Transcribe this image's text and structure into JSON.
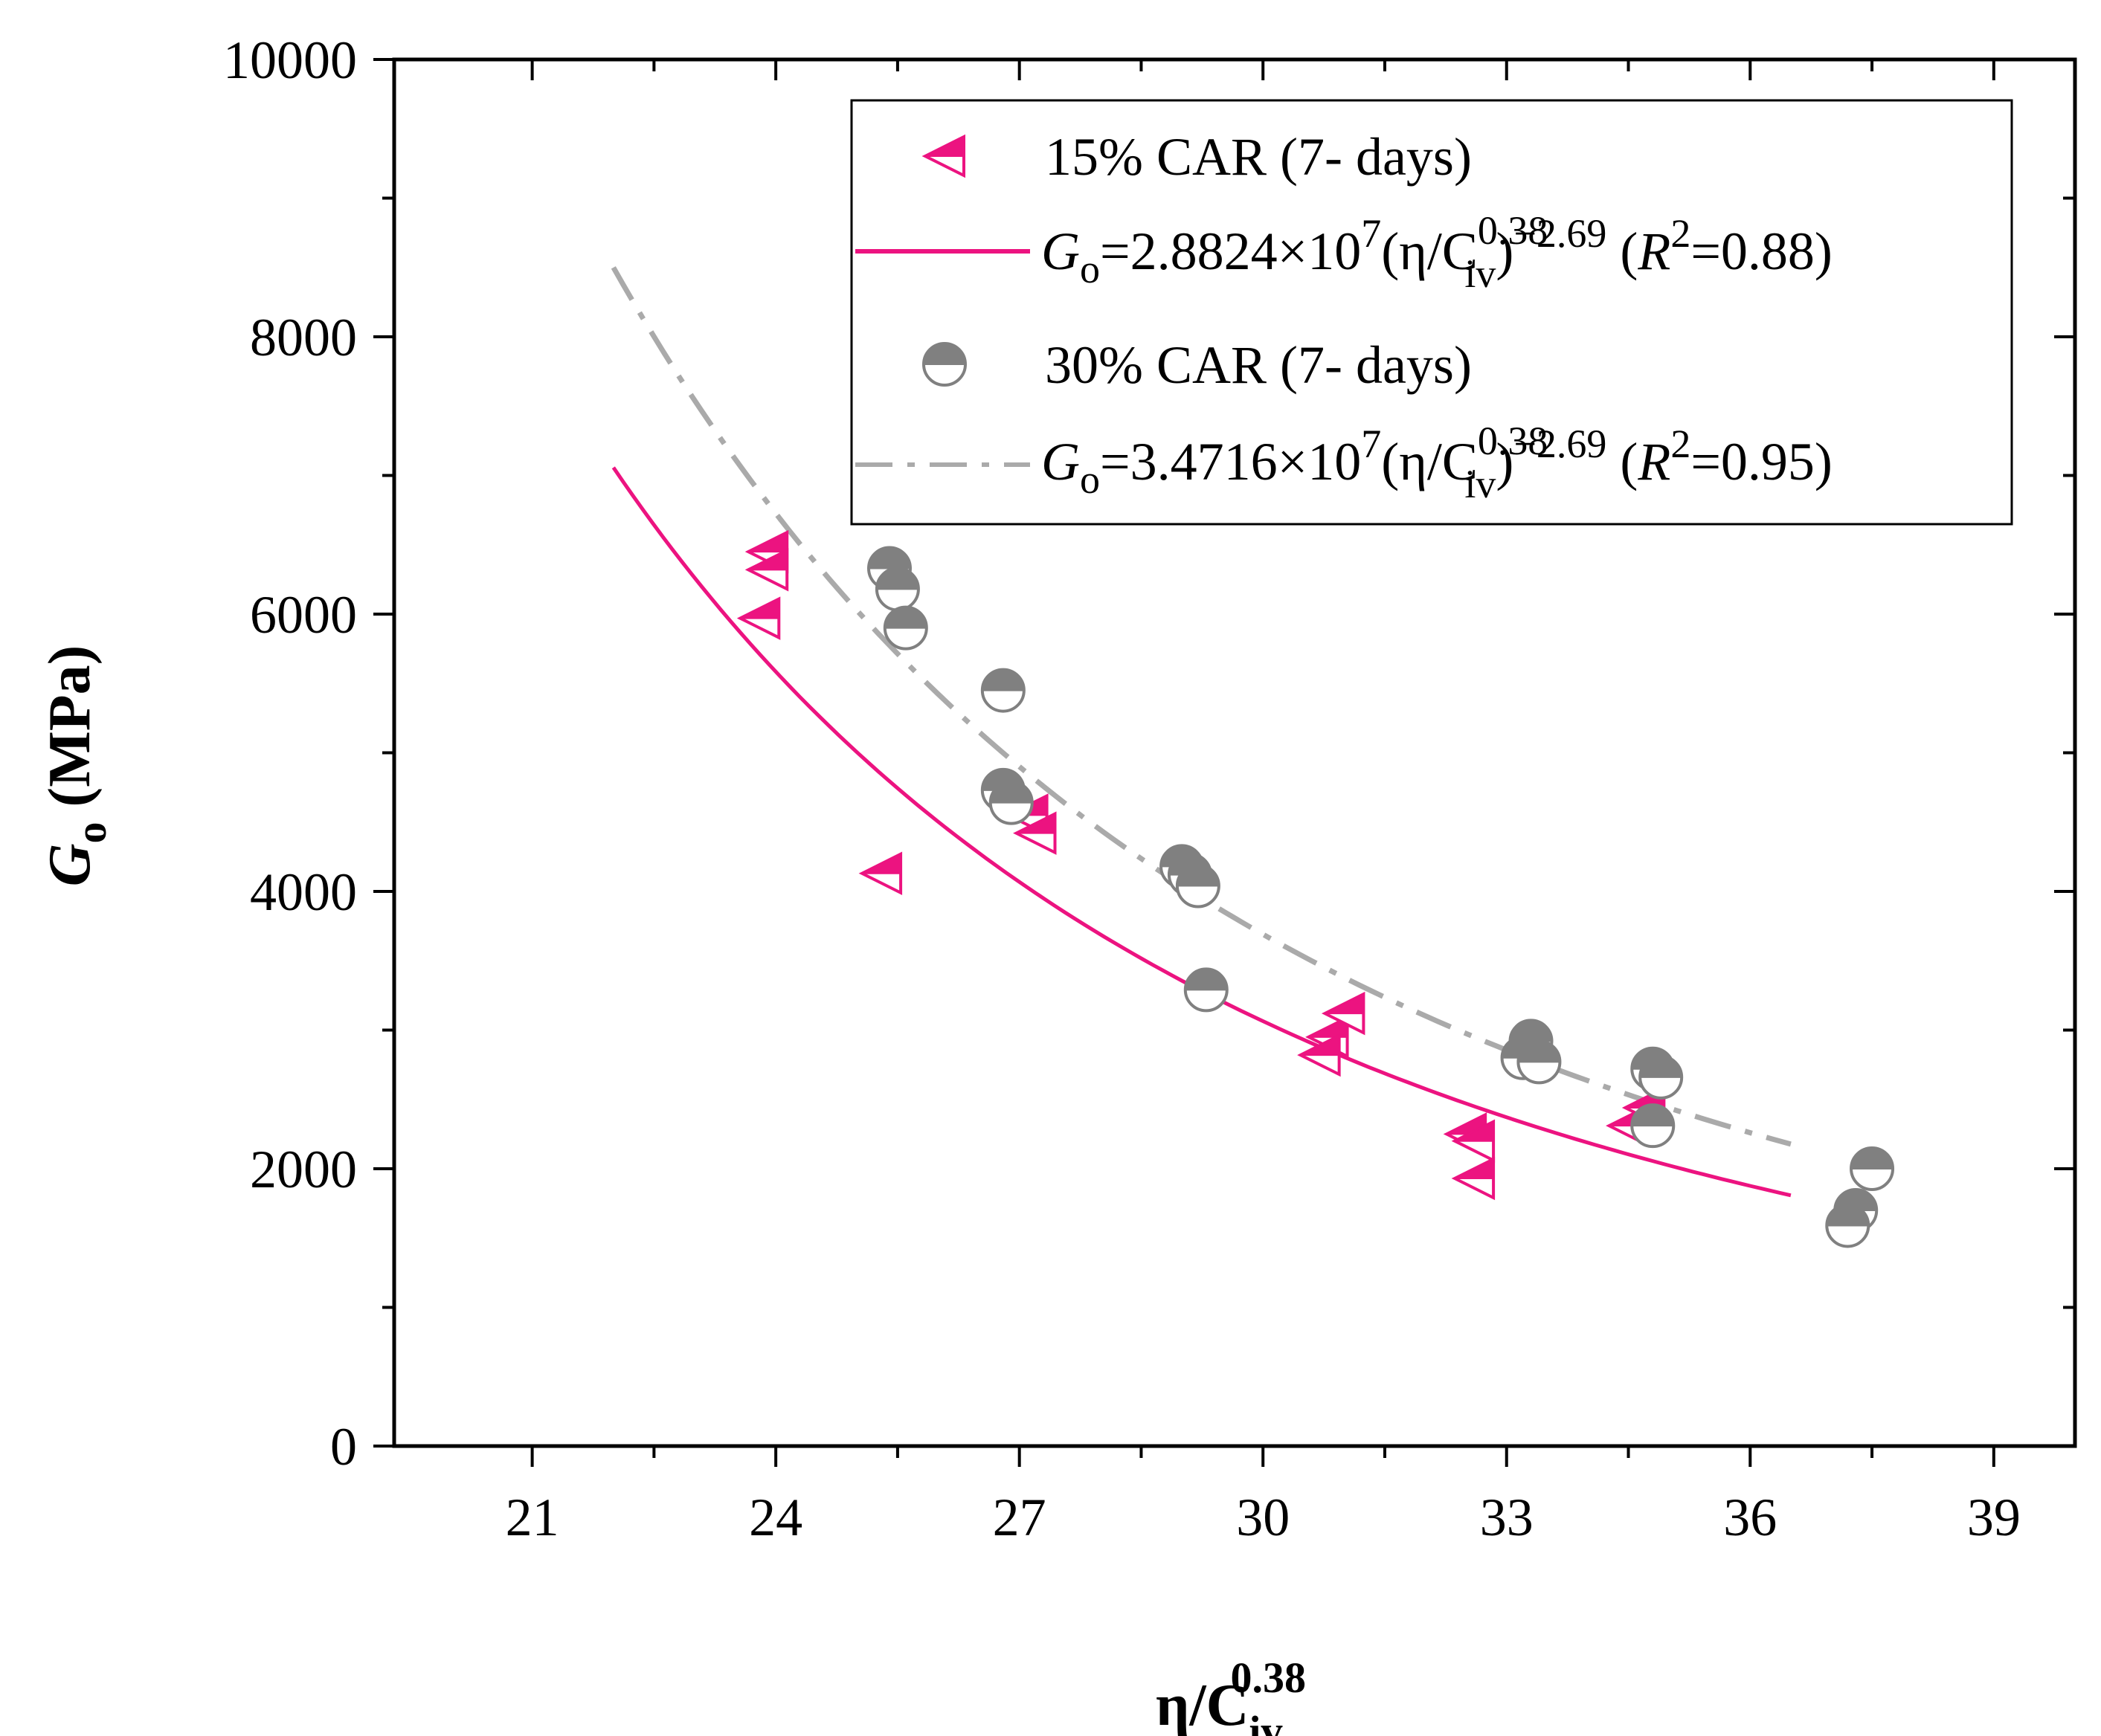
{
  "chart_data": {
    "type": "scatter",
    "title": "",
    "xlabel": {
      "base": "η/C",
      "sub": "iv",
      "sup": "0.38"
    },
    "ylabel": {
      "base": "G",
      "sub": "o",
      "unit": " (MPa)"
    },
    "xlim": [
      19.3,
      40.0
    ],
    "ylim": [
      0,
      10000
    ],
    "xticks": [
      21,
      24,
      27,
      30,
      33,
      36,
      39
    ],
    "xtick_labels": [
      "21",
      "24",
      "27",
      "30",
      "33",
      "36",
      "39"
    ],
    "yticks": [
      0,
      2000,
      4000,
      6000,
      8000,
      10000
    ],
    "ytick_labels": [
      "0",
      "2000",
      "4000",
      "6000",
      "8000",
      "10000"
    ],
    "colors": {
      "pink": "#ec1380",
      "gray": "#808080",
      "gray_light": "#aaaaaa"
    },
    "series": [
      {
        "name": "15% CAR (7- days)",
        "kind": "points",
        "marker": "half-triangle-left",
        "color": "#ec1380",
        "x": [
          23.9,
          23.9,
          23.8,
          25.3,
          27.1,
          27.2,
          30.8,
          31.0,
          30.7,
          32.5,
          32.6,
          32.6,
          34.5,
          34.7
        ],
        "y": [
          6450,
          6320,
          5970,
          4130,
          4550,
          4420,
          2950,
          3120,
          2820,
          2250,
          2200,
          1930,
          2310,
          2440
        ]
      },
      {
        "name": "Go=2.8824×10^7(η/Civ^0.38)^−2.69 (R^2=0.88)",
        "kind": "fit",
        "coef": 28824000,
        "exp": -2.69,
        "xrange": [
          22.0,
          36.5
        ],
        "color": "#ec1380",
        "dash": "solid",
        "legend": {
          "pre": "G",
          "sub1": "o",
          "mid": "=2.8824×10",
          "exp1": "7",
          "open": "(η/C",
          "sup2": "0.38",
          "sub2": "iv",
          "close": ")",
          "exp3": "−2.69",
          "r_open": " (",
          "r": "R",
          "exp4": "2",
          "r_close": "=0.88)"
        }
      },
      {
        "name": "30% CAR (7- days)",
        "kind": "points",
        "marker": "half-circle",
        "color": "#808080",
        "x": [
          25.4,
          25.5,
          25.6,
          26.8,
          26.8,
          26.9,
          29.0,
          29.1,
          29.2,
          29.3,
          33.3,
          33.2,
          33.4,
          34.8,
          34.9,
          34.8,
          37.5,
          37.3,
          37.2
        ],
        "y": [
          6330,
          6180,
          5900,
          5450,
          4730,
          4640,
          4180,
          4120,
          4040,
          3290,
          2920,
          2800,
          2770,
          2720,
          2660,
          2310,
          2000,
          1700,
          1590
        ]
      },
      {
        "name": "Go=3.4716×10^7(η/Civ^0.38)^−2.69 (R^2=0.95)",
        "kind": "fit",
        "coef": 34716000,
        "exp": -2.69,
        "xrange": [
          22.0,
          36.5
        ],
        "color": "#aaaaaa",
        "dash": "dash-dot",
        "legend": {
          "pre": "G",
          "sub1": "o",
          "mid": "=3.4716×10",
          "exp1": "7",
          "open": "(η/C",
          "sup2": "0.38",
          "sub2": "iv",
          "close": ")",
          "exp3": "−2.69",
          "r_open": " (",
          "r": "R",
          "exp4": "2",
          "r_close": "=0.95)"
        }
      }
    ],
    "legend_position": "top-right"
  }
}
